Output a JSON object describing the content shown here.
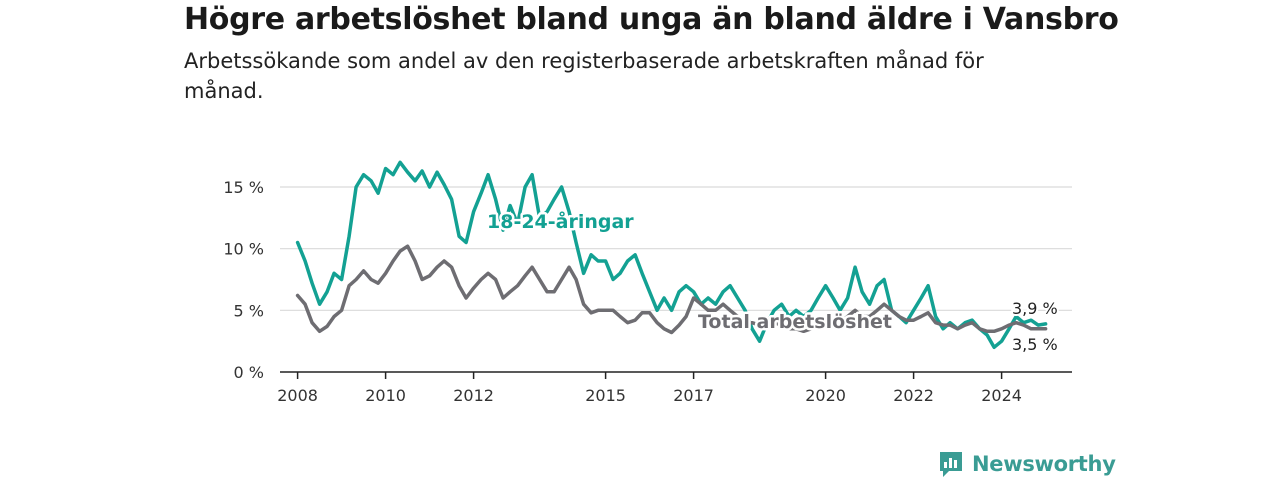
{
  "title": "Högre arbetslöshet bland unga än bland äldre i Vansbro",
  "subtitle": "Arbetssökande som andel av den registerbaserade arbetskraften månad för månad.",
  "brand": {
    "name": "Newsworthy",
    "color": "#3a9c94",
    "icon": "bar-chart-logo-icon"
  },
  "chart_data": {
    "type": "line",
    "x_ticks": [
      "2008",
      "2010",
      "2012",
      "2015",
      "2017",
      "2020",
      "2022",
      "2024"
    ],
    "y_ticks": [
      "0 %",
      "5 %",
      "10 %",
      "15 %"
    ],
    "ylim": [
      0,
      18
    ],
    "grid": true,
    "series": [
      {
        "name": "18-24-åringar",
        "color": "#13a193",
        "end_label": "3,9 %",
        "points": [
          [
            2008.0,
            10.5
          ],
          [
            2008.17,
            9.0
          ],
          [
            2008.33,
            7.2
          ],
          [
            2008.5,
            5.5
          ],
          [
            2008.67,
            6.5
          ],
          [
            2008.83,
            8.0
          ],
          [
            2009.0,
            7.5
          ],
          [
            2009.17,
            11.0
          ],
          [
            2009.33,
            15.0
          ],
          [
            2009.5,
            16.0
          ],
          [
            2009.67,
            15.5
          ],
          [
            2009.83,
            14.5
          ],
          [
            2010.0,
            16.5
          ],
          [
            2010.17,
            16.0
          ],
          [
            2010.33,
            17.0
          ],
          [
            2010.5,
            16.2
          ],
          [
            2010.67,
            15.5
          ],
          [
            2010.83,
            16.3
          ],
          [
            2011.0,
            15.0
          ],
          [
            2011.17,
            16.2
          ],
          [
            2011.33,
            15.2
          ],
          [
            2011.5,
            14.0
          ],
          [
            2011.67,
            11.0
          ],
          [
            2011.83,
            10.5
          ],
          [
            2012.0,
            13.0
          ],
          [
            2012.17,
            14.5
          ],
          [
            2012.33,
            16.0
          ],
          [
            2012.5,
            14.0
          ],
          [
            2012.67,
            11.5
          ],
          [
            2012.83,
            13.5
          ],
          [
            2013.0,
            12.0
          ],
          [
            2013.17,
            15.0
          ],
          [
            2013.33,
            16.0
          ],
          [
            2013.5,
            12.5
          ],
          [
            2013.67,
            13.0
          ],
          [
            2013.83,
            14.0
          ],
          [
            2014.0,
            15.0
          ],
          [
            2014.17,
            13.0
          ],
          [
            2014.33,
            10.5
          ],
          [
            2014.5,
            8.0
          ],
          [
            2014.67,
            9.5
          ],
          [
            2014.83,
            9.0
          ],
          [
            2015.0,
            9.0
          ],
          [
            2015.17,
            7.5
          ],
          [
            2015.33,
            8.0
          ],
          [
            2015.5,
            9.0
          ],
          [
            2015.67,
            9.5
          ],
          [
            2015.83,
            8.0
          ],
          [
            2016.0,
            6.5
          ],
          [
            2016.17,
            5.0
          ],
          [
            2016.33,
            6.0
          ],
          [
            2016.5,
            5.0
          ],
          [
            2016.67,
            6.5
          ],
          [
            2016.83,
            7.0
          ],
          [
            2017.0,
            6.5
          ],
          [
            2017.17,
            5.5
          ],
          [
            2017.33,
            6.0
          ],
          [
            2017.5,
            5.5
          ],
          [
            2017.67,
            6.5
          ],
          [
            2017.83,
            7.0
          ],
          [
            2018.0,
            6.0
          ],
          [
            2018.17,
            5.0
          ],
          [
            2018.33,
            3.5
          ],
          [
            2018.5,
            2.5
          ],
          [
            2018.67,
            4.0
          ],
          [
            2018.83,
            5.0
          ],
          [
            2019.0,
            5.5
          ],
          [
            2019.17,
            4.5
          ],
          [
            2019.33,
            5.0
          ],
          [
            2019.5,
            4.5
          ],
          [
            2019.67,
            5.0
          ],
          [
            2019.83,
            6.0
          ],
          [
            2020.0,
            7.0
          ],
          [
            2020.17,
            6.0
          ],
          [
            2020.33,
            5.0
          ],
          [
            2020.5,
            6.0
          ],
          [
            2020.67,
            8.5
          ],
          [
            2020.83,
            6.5
          ],
          [
            2021.0,
            5.5
          ],
          [
            2021.17,
            7.0
          ],
          [
            2021.33,
            7.5
          ],
          [
            2021.5,
            5.0
          ],
          [
            2021.67,
            4.5
          ],
          [
            2021.83,
            4.0
          ],
          [
            2022.0,
            5.0
          ],
          [
            2022.17,
            6.0
          ],
          [
            2022.33,
            7.0
          ],
          [
            2022.5,
            4.5
          ],
          [
            2022.67,
            3.5
          ],
          [
            2022.83,
            4.0
          ],
          [
            2023.0,
            3.5
          ],
          [
            2023.17,
            4.0
          ],
          [
            2023.33,
            4.2
          ],
          [
            2023.5,
            3.5
          ],
          [
            2023.67,
            3.0
          ],
          [
            2023.83,
            2.0
          ],
          [
            2024.0,
            2.5
          ],
          [
            2024.17,
            3.5
          ],
          [
            2024.33,
            4.5
          ],
          [
            2024.5,
            4.0
          ],
          [
            2024.67,
            4.2
          ],
          [
            2024.83,
            3.8
          ],
          [
            2025.0,
            3.9
          ]
        ]
      },
      {
        "name": "Total arbetslöshet",
        "color": "#6e6d72",
        "end_label": "3,5 %",
        "points": [
          [
            2008.0,
            6.2
          ],
          [
            2008.17,
            5.5
          ],
          [
            2008.33,
            4.0
          ],
          [
            2008.5,
            3.3
          ],
          [
            2008.67,
            3.7
          ],
          [
            2008.83,
            4.5
          ],
          [
            2009.0,
            5.0
          ],
          [
            2009.17,
            7.0
          ],
          [
            2009.33,
            7.5
          ],
          [
            2009.5,
            8.2
          ],
          [
            2009.67,
            7.5
          ],
          [
            2009.83,
            7.2
          ],
          [
            2010.0,
            8.0
          ],
          [
            2010.17,
            9.0
          ],
          [
            2010.33,
            9.8
          ],
          [
            2010.5,
            10.2
          ],
          [
            2010.67,
            9.0
          ],
          [
            2010.83,
            7.5
          ],
          [
            2011.0,
            7.8
          ],
          [
            2011.17,
            8.5
          ],
          [
            2011.33,
            9.0
          ],
          [
            2011.5,
            8.5
          ],
          [
            2011.67,
            7.0
          ],
          [
            2011.83,
            6.0
          ],
          [
            2012.0,
            6.8
          ],
          [
            2012.17,
            7.5
          ],
          [
            2012.33,
            8.0
          ],
          [
            2012.5,
            7.5
          ],
          [
            2012.67,
            6.0
          ],
          [
            2012.83,
            6.5
          ],
          [
            2013.0,
            7.0
          ],
          [
            2013.17,
            7.8
          ],
          [
            2013.33,
            8.5
          ],
          [
            2013.5,
            7.5
          ],
          [
            2013.67,
            6.5
          ],
          [
            2013.83,
            6.5
          ],
          [
            2014.0,
            7.5
          ],
          [
            2014.17,
            8.5
          ],
          [
            2014.33,
            7.5
          ],
          [
            2014.5,
            5.5
          ],
          [
            2014.67,
            4.8
          ],
          [
            2014.83,
            5.0
          ],
          [
            2015.0,
            5.0
          ],
          [
            2015.17,
            5.0
          ],
          [
            2015.33,
            4.5
          ],
          [
            2015.5,
            4.0
          ],
          [
            2015.67,
            4.2
          ],
          [
            2015.83,
            4.8
          ],
          [
            2016.0,
            4.8
          ],
          [
            2016.17,
            4.0
          ],
          [
            2016.33,
            3.5
          ],
          [
            2016.5,
            3.2
          ],
          [
            2016.67,
            3.8
          ],
          [
            2016.83,
            4.5
          ],
          [
            2017.0,
            6.0
          ],
          [
            2017.17,
            5.5
          ],
          [
            2017.33,
            5.0
          ],
          [
            2017.5,
            5.0
          ],
          [
            2017.67,
            5.5
          ],
          [
            2017.83,
            5.0
          ],
          [
            2018.0,
            4.5
          ],
          [
            2018.17,
            4.0
          ],
          [
            2018.33,
            4.0
          ],
          [
            2018.5,
            3.8
          ],
          [
            2018.67,
            4.0
          ],
          [
            2018.83,
            4.0
          ],
          [
            2019.0,
            3.8
          ],
          [
            2019.17,
            3.5
          ],
          [
            2019.33,
            3.5
          ],
          [
            2019.5,
            3.3
          ],
          [
            2019.67,
            3.5
          ],
          [
            2019.83,
            3.8
          ],
          [
            2020.0,
            4.0
          ],
          [
            2020.17,
            4.0
          ],
          [
            2020.33,
            4.0
          ],
          [
            2020.5,
            4.5
          ],
          [
            2020.67,
            5.0
          ],
          [
            2020.83,
            4.5
          ],
          [
            2021.0,
            4.5
          ],
          [
            2021.17,
            5.0
          ],
          [
            2021.33,
            5.5
          ],
          [
            2021.5,
            5.0
          ],
          [
            2021.67,
            4.5
          ],
          [
            2021.83,
            4.2
          ],
          [
            2022.0,
            4.2
          ],
          [
            2022.17,
            4.5
          ],
          [
            2022.33,
            4.8
          ],
          [
            2022.5,
            4.0
          ],
          [
            2022.67,
            3.8
          ],
          [
            2022.83,
            3.8
          ],
          [
            2023.0,
            3.5
          ],
          [
            2023.17,
            3.8
          ],
          [
            2023.33,
            4.0
          ],
          [
            2023.5,
            3.5
          ],
          [
            2023.67,
            3.3
          ],
          [
            2023.83,
            3.3
          ],
          [
            2024.0,
            3.5
          ],
          [
            2024.17,
            3.8
          ],
          [
            2024.33,
            4.0
          ],
          [
            2024.5,
            3.8
          ],
          [
            2024.67,
            3.5
          ],
          [
            2024.83,
            3.5
          ],
          [
            2025.0,
            3.5
          ]
        ]
      }
    ]
  }
}
